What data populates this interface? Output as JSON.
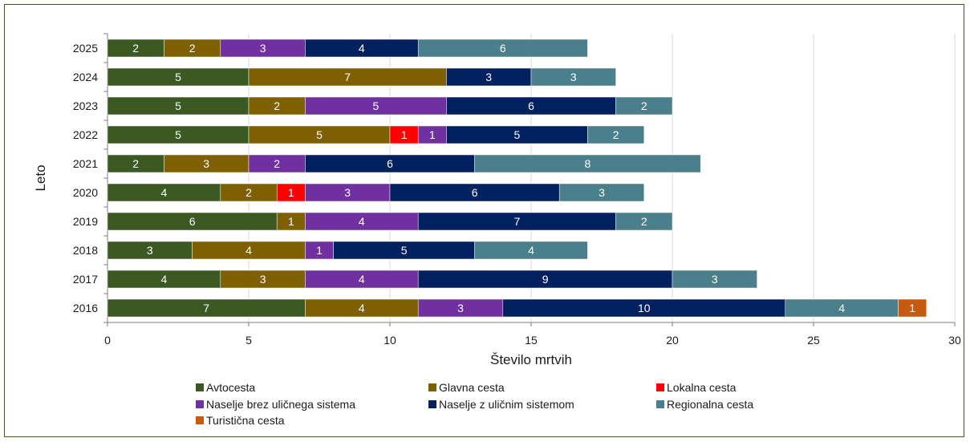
{
  "chart_data": {
    "type": "bar",
    "orientation": "horizontal",
    "stacked": true,
    "categories": [
      "2025",
      "2024",
      "2023",
      "2022",
      "2021",
      "2020",
      "2019",
      "2018",
      "2017",
      "2016"
    ],
    "series": [
      {
        "name": "Avtocesta",
        "color": "#3b5a23",
        "values": [
          2,
          5,
          5,
          5,
          2,
          4,
          6,
          3,
          4,
          7
        ]
      },
      {
        "name": "Glavna cesta",
        "color": "#7f6000",
        "values": [
          2,
          7,
          2,
          5,
          3,
          2,
          1,
          4,
          3,
          4
        ]
      },
      {
        "name": "Lokalna cesta",
        "color": "#ff0000",
        "values": [
          0,
          0,
          0,
          1,
          0,
          1,
          0,
          0,
          0,
          0
        ]
      },
      {
        "name": "Naselje brez uličnega sistema",
        "color": "#7030a0",
        "values": [
          3,
          0,
          5,
          1,
          2,
          3,
          4,
          1,
          4,
          3
        ]
      },
      {
        "name": "Naselje z uličnim sistemom",
        "color": "#002060",
        "values": [
          4,
          3,
          6,
          5,
          6,
          6,
          7,
          5,
          9,
          10
        ]
      },
      {
        "name": "Regionalna cesta",
        "color": "#4a7f8c",
        "values": [
          6,
          3,
          2,
          2,
          8,
          3,
          2,
          4,
          3,
          4
        ]
      },
      {
        "name": "Turistična cesta",
        "color": "#c55a11",
        "values": [
          0,
          0,
          0,
          0,
          0,
          0,
          0,
          0,
          0,
          1
        ]
      }
    ],
    "xlim": [
      0,
      30
    ],
    "xticks": [
      0,
      5,
      10,
      15,
      20,
      25,
      30
    ],
    "xlabel": "Število mrtvih",
    "ylabel": "Leto",
    "grid": "vertical",
    "legend_position": "bottom"
  }
}
